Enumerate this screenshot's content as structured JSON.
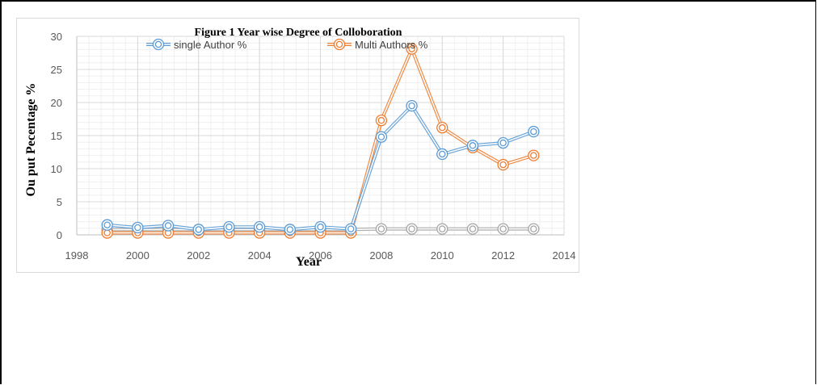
{
  "colors": {
    "single": "#5b9bd5",
    "multi": "#ed7d31",
    "third": "#a5a5a5",
    "grid_major": "#d9d9d9",
    "grid_minor": "#efefef",
    "axis": "#bfbfbf"
  },
  "chart_data": {
    "type": "scatter",
    "title": "Figure 1 Year wise Degree of Colloboration",
    "xlabel": "Year",
    "ylabel": "Ou put Pecentage %",
    "xlim": [
      1998,
      2014
    ],
    "ylim": [
      0,
      30
    ],
    "xticks": [
      1998,
      2000,
      2002,
      2004,
      2006,
      2008,
      2010,
      2012,
      2014
    ],
    "yticks": [
      0,
      5,
      10,
      15,
      20,
      25,
      30
    ],
    "grid": "major and minor",
    "legend_position": "top",
    "x": [
      1999,
      2000,
      2001,
      2002,
      2003,
      2004,
      2005,
      2006,
      2007,
      2008,
      2009,
      2010,
      2011,
      2012,
      2013
    ],
    "series": [
      {
        "name": "single Author %",
        "color_key": "single",
        "values": [
          1.5,
          1.1,
          1.4,
          0.8,
          1.2,
          1.2,
          0.8,
          1.2,
          0.9,
          14.8,
          19.5,
          12.2,
          13.5,
          13.9,
          15.6
        ],
        "in_legend": true
      },
      {
        "name": "Multi Authors %",
        "color_key": "multi",
        "values": [
          0.3,
          0.3,
          0.3,
          0.3,
          0.3,
          0.3,
          0.3,
          0.3,
          0.3,
          17.3,
          28.1,
          16.2,
          13.2,
          10.6,
          12.0
        ],
        "in_legend": true
      },
      {
        "color_key": "third",
        "values": [
          0.8,
          0.8,
          0.8,
          0.8,
          0.8,
          0.8,
          0.8,
          0.8,
          0.8,
          0.9,
          0.9,
          0.9,
          0.9,
          0.9,
          0.9
        ],
        "in_legend": false
      }
    ]
  }
}
